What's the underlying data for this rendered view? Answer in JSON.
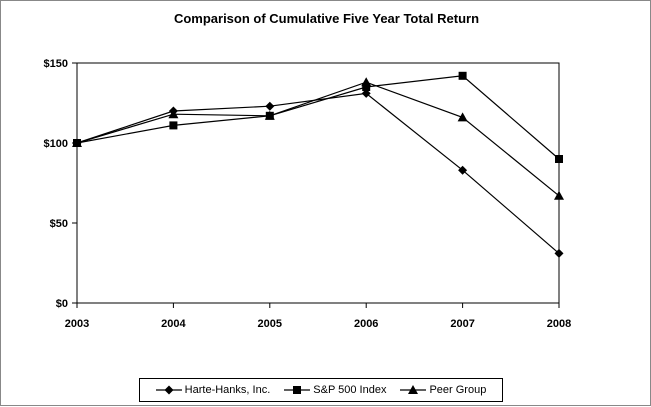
{
  "chart_data": {
    "type": "line",
    "title": "Comparison of Cumulative Five Year Total Return",
    "x": [
      "2003",
      "2004",
      "2005",
      "2006",
      "2007",
      "2008"
    ],
    "ylim": [
      0,
      150
    ],
    "yticks": [
      0,
      50,
      100,
      150
    ],
    "ytick_labels": [
      "$0",
      "$50",
      "$100",
      "$150"
    ],
    "grid": false,
    "legend_position": "bottom",
    "series": [
      {
        "name": "Harte-Hanks, Inc.",
        "marker": "diamond",
        "values": [
          100,
          120,
          123,
          131,
          83,
          31
        ]
      },
      {
        "name": "S&P 500 Index",
        "marker": "square",
        "values": [
          100,
          111,
          117,
          135,
          142,
          90
        ]
      },
      {
        "name": "Peer Group",
        "marker": "triangle",
        "values": [
          100,
          118,
          117,
          138,
          116,
          67
        ]
      }
    ],
    "colors": {
      "line": "#000000",
      "axis": "#000000"
    }
  }
}
